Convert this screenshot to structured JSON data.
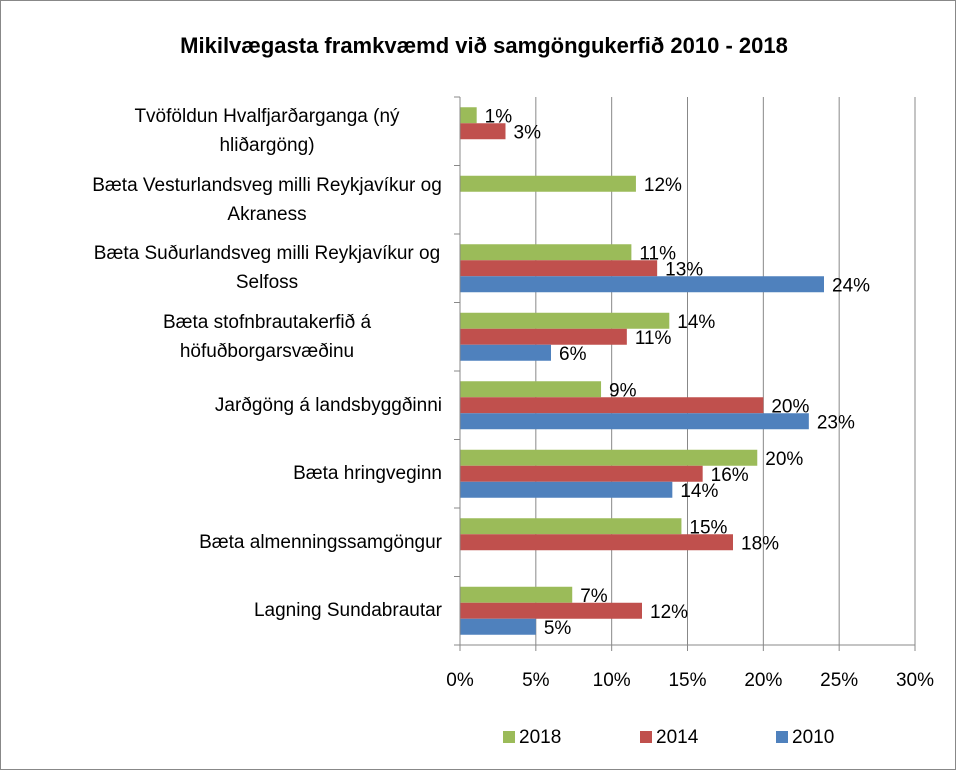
{
  "chart_data": {
    "type": "bar",
    "orientation": "horizontal",
    "title": "Mikilvægasta framkvæmd við samgöngukerfið  2010 - 2018",
    "categories": [
      "Tvöföldun Hvalfjarðarganga (ný hliðargöng)",
      "Bæta Vesturlandsveg milli Reykjavíkur og Akraness",
      "Bæta Suðurlandsveg milli Reykjavíkur og Selfoss",
      "Bæta stofnbrautakerfið á höfuðborgarsvæðinu",
      "Jarðgöng á landsbyggðinni",
      "Bæta hringveginn",
      "Bæta almenningssamgöngur",
      "Lagning Sundabrautar"
    ],
    "series": [
      {
        "name": "2018",
        "color": "#9bbb59",
        "values": [
          1.1,
          11.6,
          11.3,
          13.8,
          9.3,
          19.6,
          14.6,
          7.4
        ],
        "value_labels": [
          "1%",
          "12%",
          "11%",
          "14%",
          "9%",
          "20%",
          "15%",
          "7%"
        ]
      },
      {
        "name": "2014",
        "color": "#c0504d",
        "values": [
          3,
          null,
          13,
          11,
          20,
          16,
          18,
          12
        ],
        "value_labels": [
          "3%",
          null,
          "13%",
          "11%",
          "20%",
          "16%",
          "18%",
          "12%"
        ]
      },
      {
        "name": "2010",
        "color": "#4f81bd",
        "values": [
          null,
          null,
          24,
          6,
          23,
          14,
          null,
          5
        ],
        "value_labels": [
          null,
          null,
          "24%",
          "6%",
          "23%",
          "14%",
          null,
          "5%"
        ]
      }
    ],
    "xlim": [
      0,
      30
    ],
    "xticks": [
      {
        "value": 0,
        "label": "0%"
      },
      {
        "value": 5,
        "label": "5%"
      },
      {
        "value": 10,
        "label": "10%"
      },
      {
        "value": 15,
        "label": "15%"
      },
      {
        "value": 20,
        "label": "20%"
      },
      {
        "value": 25,
        "label": "25%"
      },
      {
        "value": 30,
        "label": "30%"
      }
    ],
    "grid": true,
    "legend": "bottom"
  }
}
